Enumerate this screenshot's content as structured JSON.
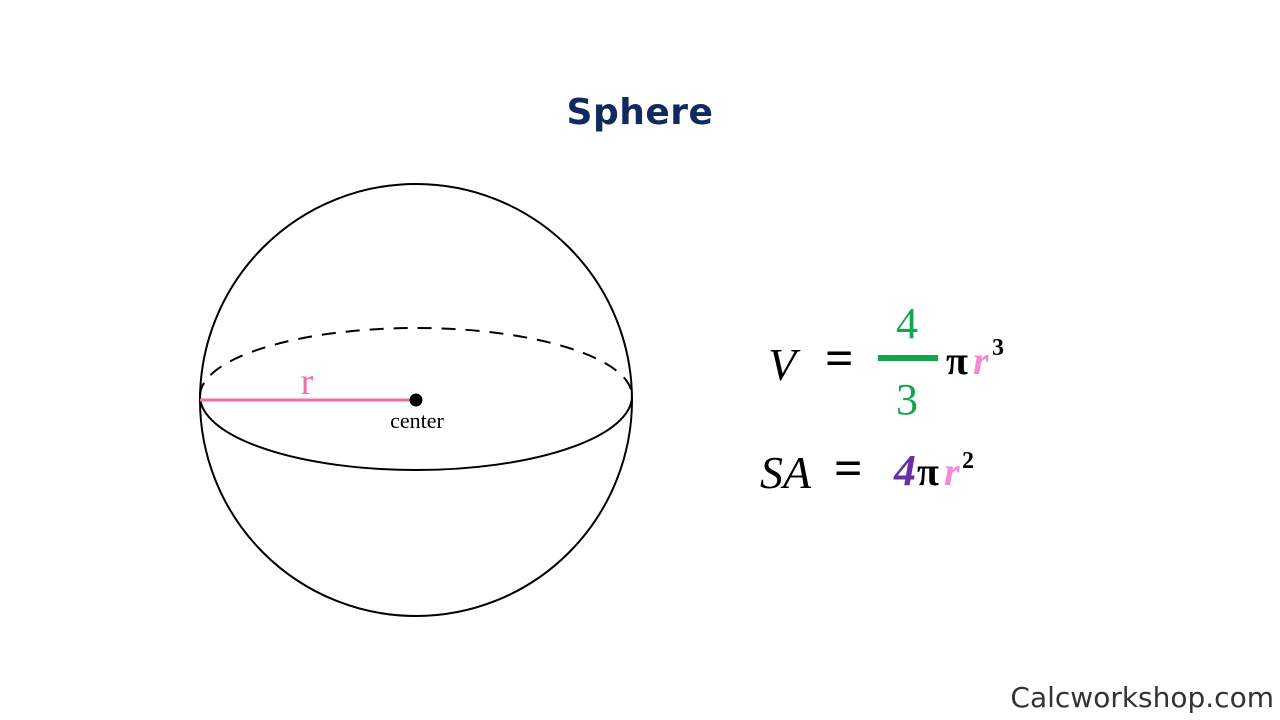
{
  "title": "Sphere",
  "labels": {
    "radius": "r",
    "center": "center"
  },
  "volume_formula": {
    "lhs": "V",
    "equals": "=",
    "numerator": "4",
    "denominator": "3",
    "pi": "π",
    "variable": "r",
    "exponent": "3"
  },
  "surface_area_formula": {
    "lhs": "SA",
    "equals": "=",
    "coefficient": "4",
    "pi": "π",
    "variable": "r",
    "exponent": "2"
  },
  "watermark": "Calcworkshop.com",
  "colors": {
    "title": "#0f2a5e",
    "radius": "#ef6fa6",
    "fraction": "#12a650",
    "coefficient": "#6a2fa0",
    "variable": "#f28ad8",
    "ink": "#000000"
  }
}
